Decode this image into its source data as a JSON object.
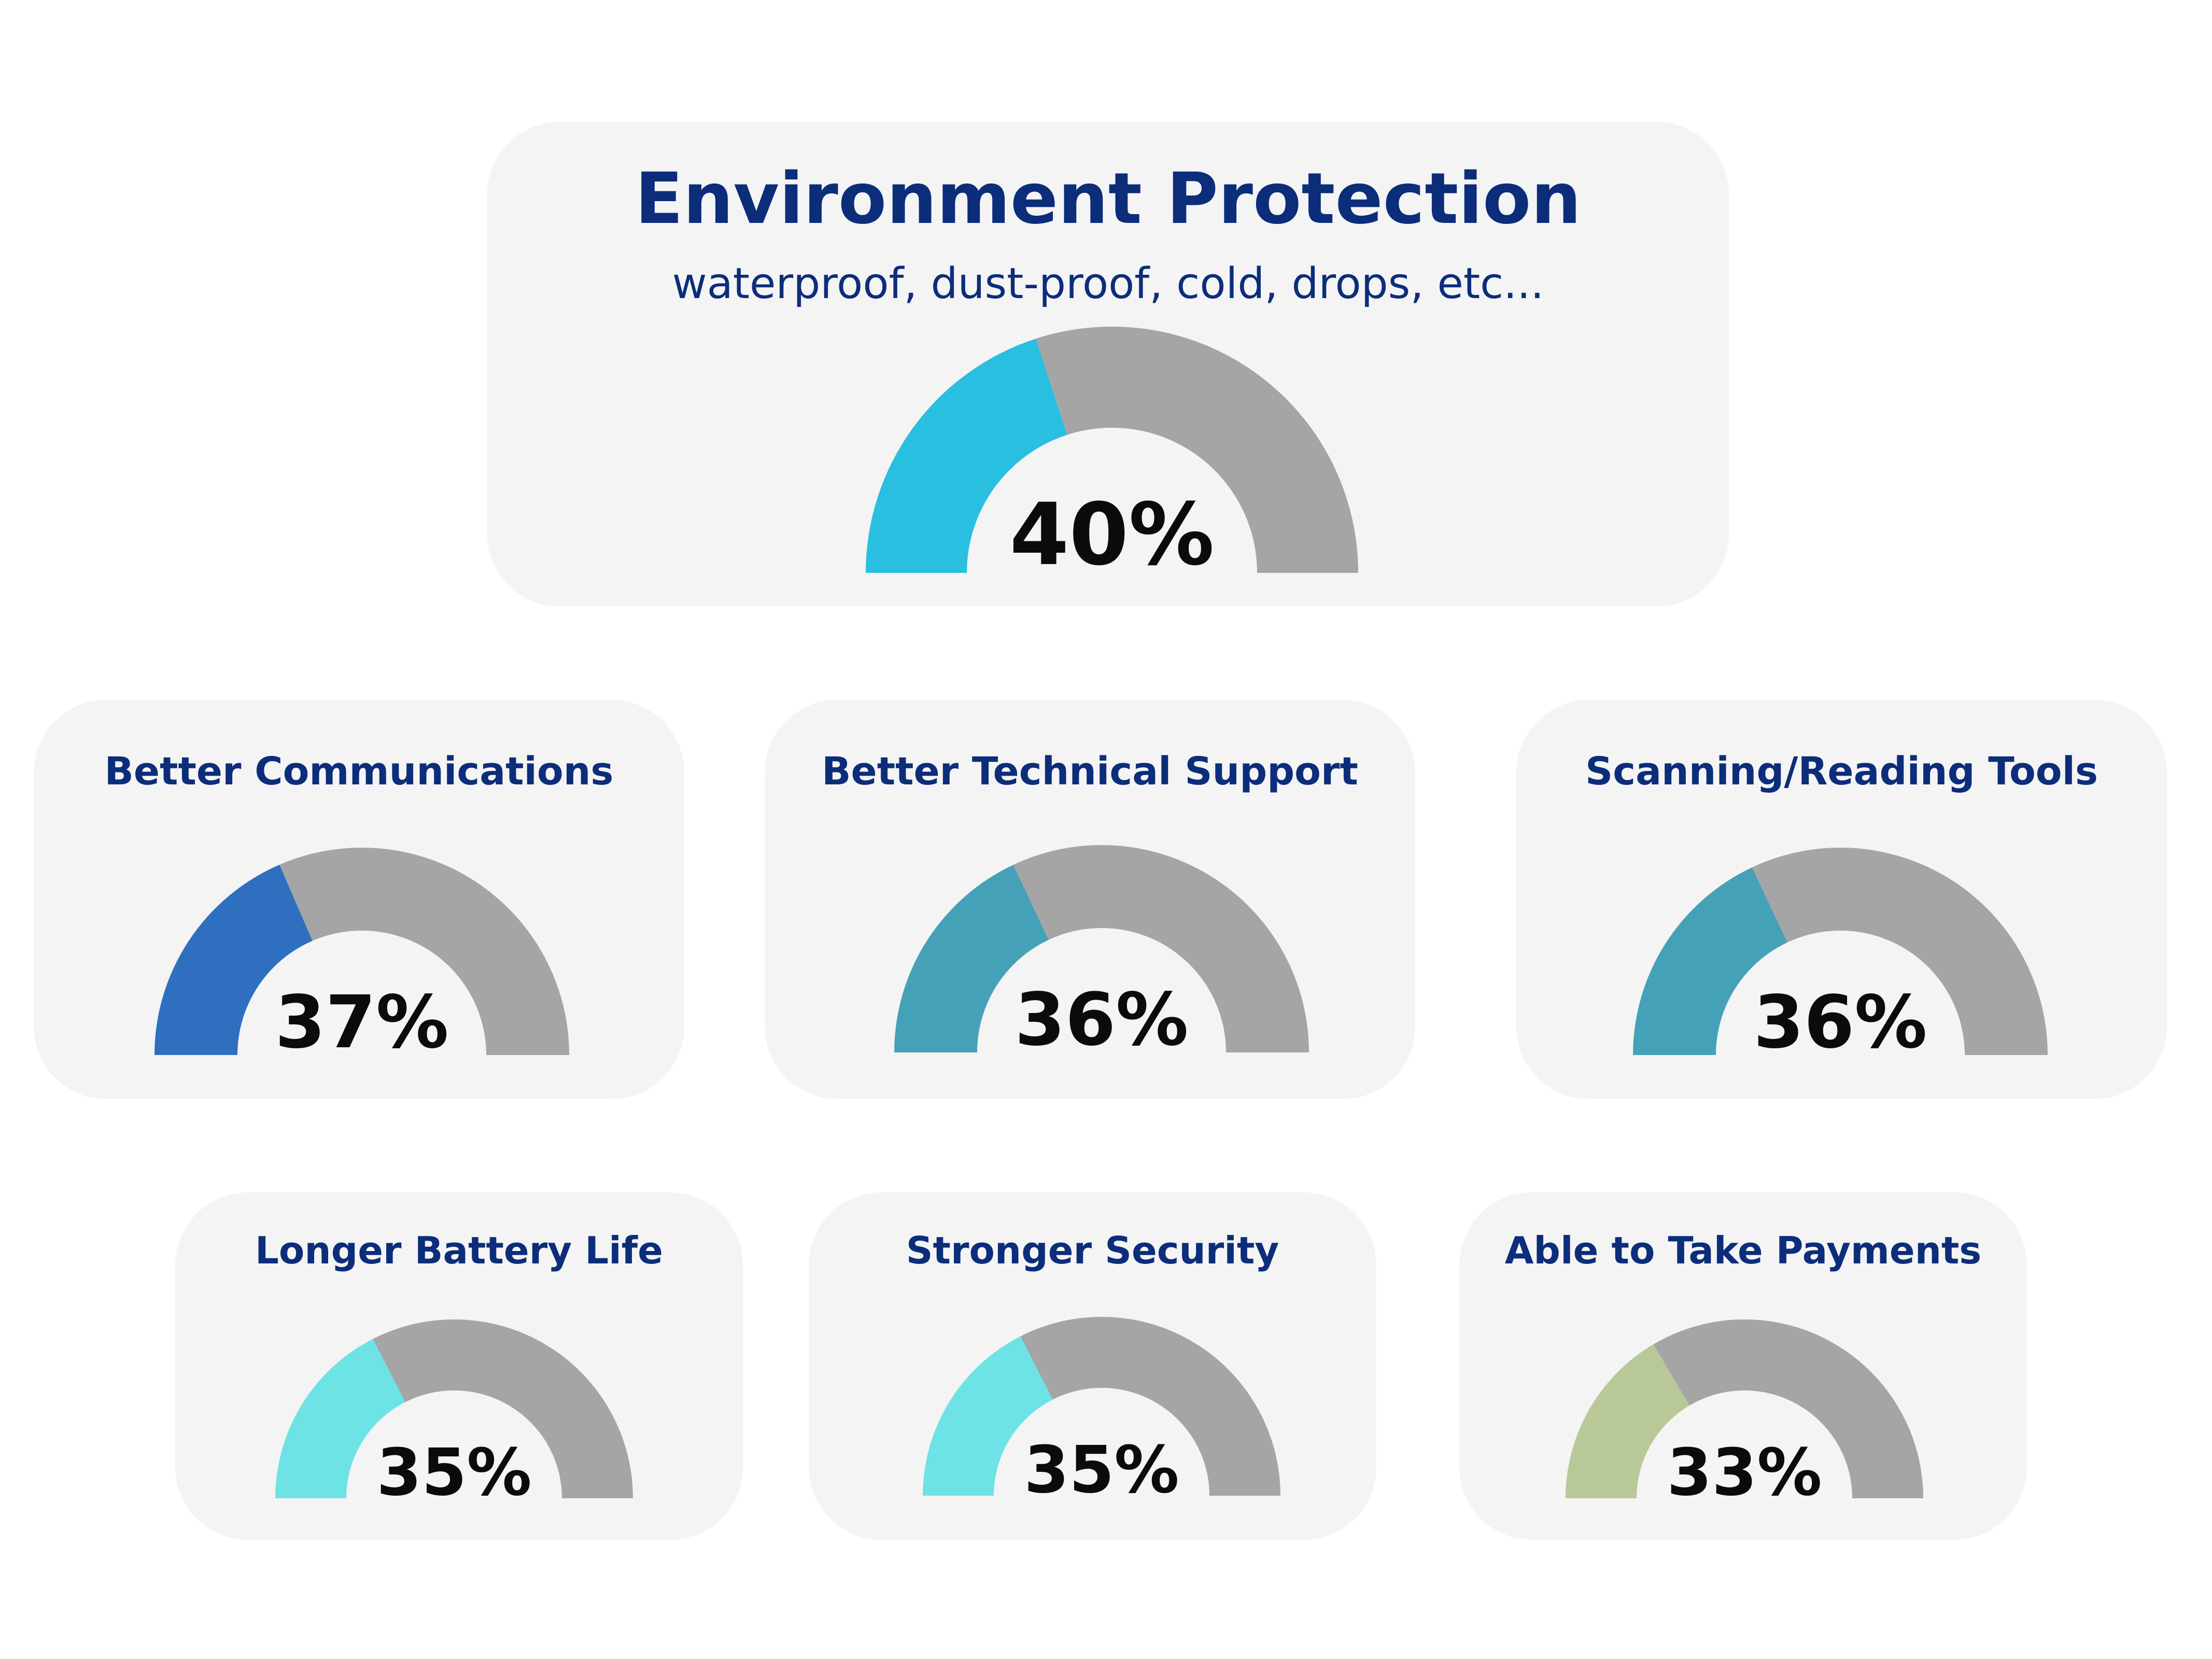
{
  "chart_data": [
    {
      "type": "gauge",
      "title": "Environment Protection",
      "subtitle": "waterproof, dust-proof, cold, drops, etc...",
      "value": 40,
      "value_label": "40%",
      "range": [
        0,
        100
      ],
      "fill_color": "#29bfe0",
      "track_color": "#a5a5a5"
    },
    {
      "type": "gauge",
      "title": "Better Communications",
      "value": 37,
      "value_label": "37%",
      "range": [
        0,
        100
      ],
      "fill_color": "#2f6fc0",
      "track_color": "#a5a5a5"
    },
    {
      "type": "gauge",
      "title": "Better Technical Support",
      "value": 36,
      "value_label": "36%",
      "range": [
        0,
        100
      ],
      "fill_color": "#45a1b8",
      "track_color": "#a5a5a5"
    },
    {
      "type": "gauge",
      "title": "Scanning/Reading Tools",
      "value": 36,
      "value_label": "36%",
      "range": [
        0,
        100
      ],
      "fill_color": "#45a1b8",
      "track_color": "#a5a5a5"
    },
    {
      "type": "gauge",
      "title": "Longer Battery Life",
      "value": 35,
      "value_label": "35%",
      "range": [
        0,
        100
      ],
      "fill_color": "#6de3e6",
      "track_color": "#a5a5a5"
    },
    {
      "type": "gauge",
      "title": "Stronger Security",
      "value": 35,
      "value_label": "35%",
      "range": [
        0,
        100
      ],
      "fill_color": "#6de3e6",
      "track_color": "#a5a5a5"
    },
    {
      "type": "gauge",
      "title": "Able to Take Payments",
      "value": 33,
      "value_label": "33%",
      "range": [
        0,
        100
      ],
      "fill_color": "#b8c897",
      "track_color": "#a5a5a5"
    }
  ]
}
